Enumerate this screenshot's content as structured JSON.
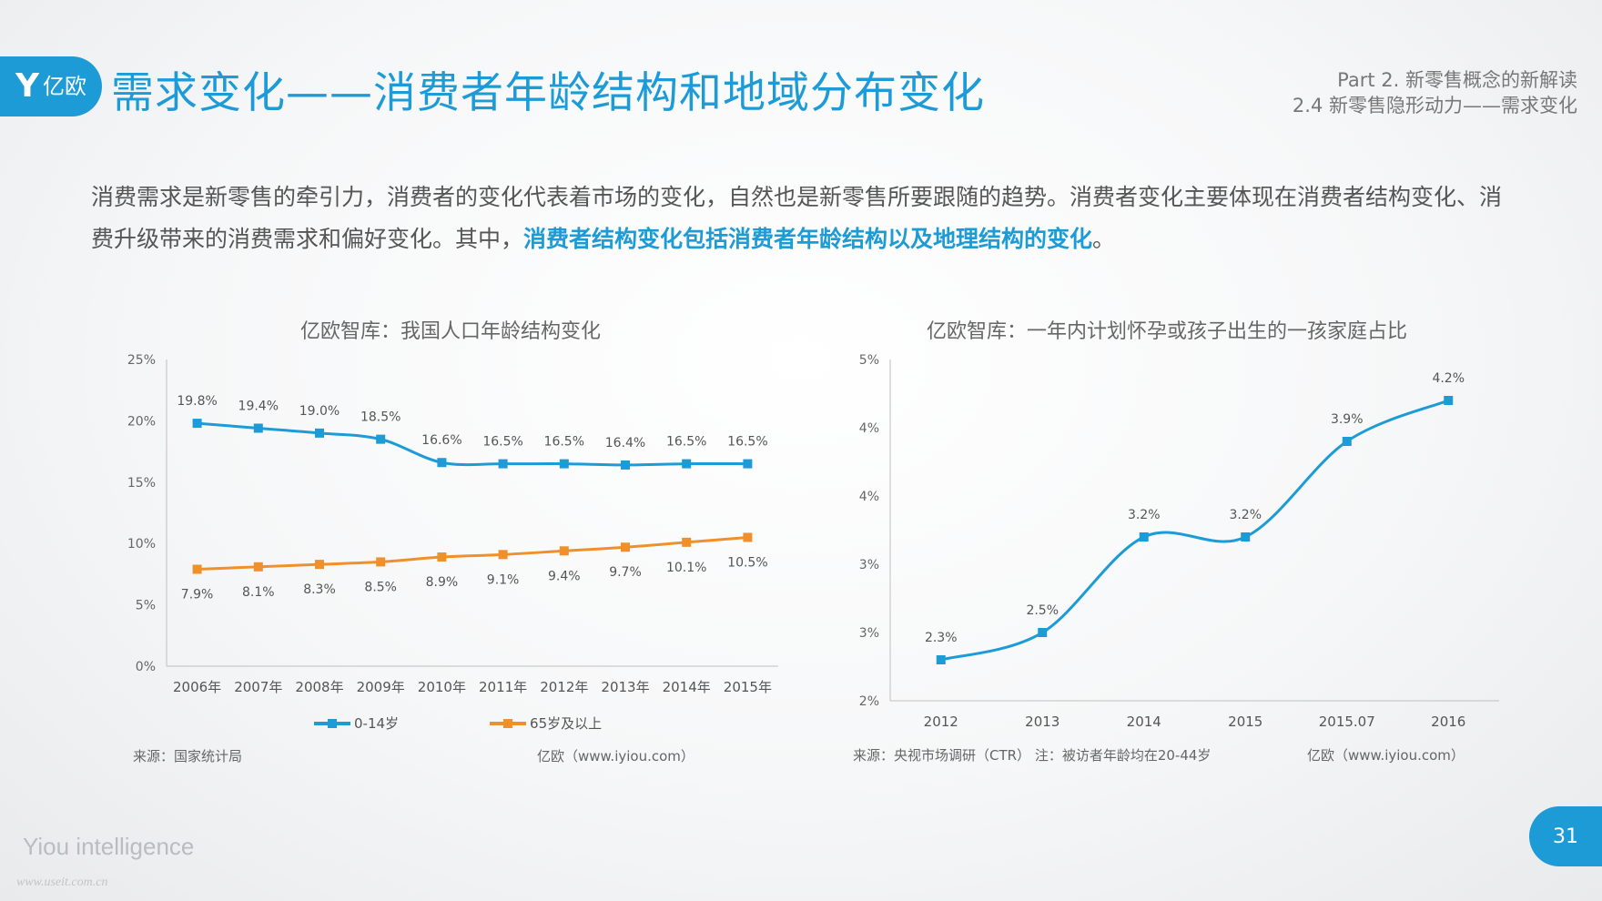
{
  "header": {
    "logo_text": "亿欧",
    "title": "需求变化——消费者年龄结构和地域分布变化",
    "section_line1": "Part 2. 新零售概念的新解读",
    "section_line2": "2.4 新零售隐形动力——需求变化"
  },
  "intro": {
    "text_before": "消费需求是新零售的牵引力，消费者的变化代表着市场的变化，自然也是新零售所要跟随的趋势。消费者变化主要体现在消费者结构变化、消费升级带来的消费需求和偏好变化。其中，",
    "highlight": "消费者结构变化包括消费者年龄结构以及地理结构的变化",
    "text_after": "。"
  },
  "footer": {
    "left_source": "来源：国家统计局",
    "left_credit": "亿欧（www.iyiou.com）",
    "right_source": "来源：央视市场调研（CTR） 注：被访者年龄均在20-44岁",
    "right_credit": "亿欧（www.iyiou.com）",
    "brand": "Yiou intelligence",
    "watermark": "www.useit.com.cn",
    "page_number": "31"
  },
  "chart_data": [
    {
      "type": "line",
      "title": "亿欧智库：我国人口年龄结构变化",
      "categories": [
        "2006年",
        "2007年",
        "2008年",
        "2009年",
        "2010年",
        "2011年",
        "2012年",
        "2013年",
        "2014年",
        "2015年"
      ],
      "yticks": [
        "0%",
        "5%",
        "10%",
        "15%",
        "20%",
        "25%"
      ],
      "ylim": [
        0,
        25
      ],
      "series": [
        {
          "name": "0-14岁",
          "color": "#1d9bd6",
          "values": [
            19.8,
            19.4,
            19.0,
            18.5,
            16.6,
            16.5,
            16.5,
            16.4,
            16.5,
            16.5
          ],
          "labels": [
            "19.8%",
            "19.4%",
            "19.0%",
            "18.5%",
            "16.6%",
            "16.5%",
            "16.5%",
            "16.4%",
            "16.5%",
            "16.5%"
          ]
        },
        {
          "name": "65岁及以上",
          "color": "#f0902a",
          "values": [
            7.9,
            8.1,
            8.3,
            8.5,
            8.9,
            9.1,
            9.4,
            9.7,
            10.1,
            10.5
          ],
          "labels": [
            "7.9%",
            "8.1%",
            "8.3%",
            "8.5%",
            "8.9%",
            "9.1%",
            "9.4%",
            "9.7%",
            "10.1%",
            "10.5%"
          ]
        }
      ],
      "legend": "bottom",
      "grid": false
    },
    {
      "type": "line",
      "title": "亿欧智库：一年内计划怀孕或孩子出生的一孩家庭占比",
      "categories": [
        "2012",
        "2013",
        "2014",
        "2015",
        "2015.07",
        "2016"
      ],
      "yticks": [
        "2%",
        "3%",
        "3%",
        "4%",
        "4%",
        "5%"
      ],
      "ylim": [
        2.0,
        4.5
      ],
      "series": [
        {
          "color": "#1d9bd6",
          "values": [
            2.3,
            2.5,
            3.2,
            3.2,
            3.9,
            4.2
          ],
          "labels": [
            "2.3%",
            "2.5%",
            "3.2%",
            "3.2%",
            "3.9%",
            "4.2%"
          ]
        }
      ],
      "grid": false
    }
  ]
}
